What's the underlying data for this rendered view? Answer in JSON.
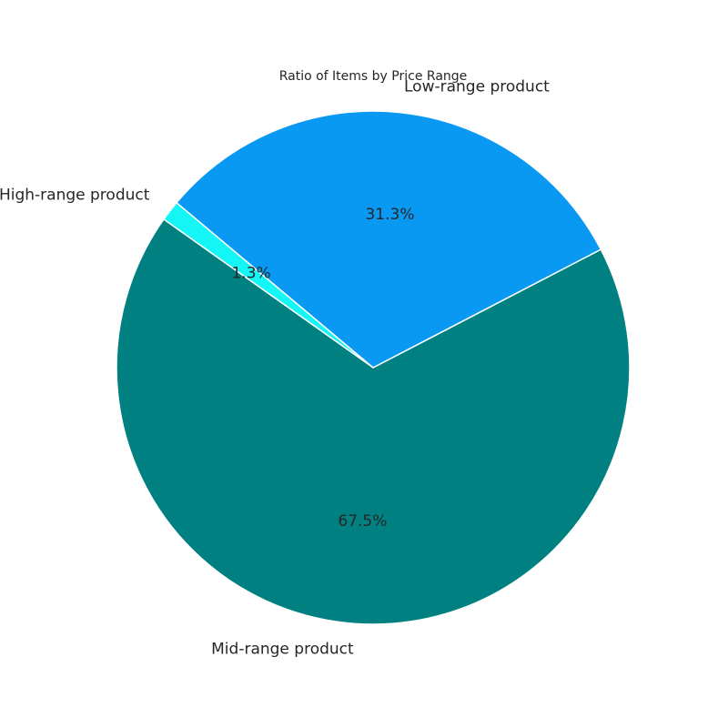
{
  "chart_data": {
    "type": "pie",
    "title": "Ratio of Items by Price Range",
    "start_angle_deg": 140,
    "direction": "counterclockwise",
    "slice_edge_color": "#ffffff",
    "slices": [
      {
        "label": "High-range product",
        "value": 1.3,
        "pct_text": "1.3%",
        "color": "#14f5f5"
      },
      {
        "label": "Mid-range product",
        "value": 67.5,
        "pct_text": "67.5%",
        "color": "#008080"
      },
      {
        "label": "Low-range product",
        "value": 31.3,
        "pct_text": "31.3%",
        "color": "#0a99f2"
      }
    ]
  }
}
